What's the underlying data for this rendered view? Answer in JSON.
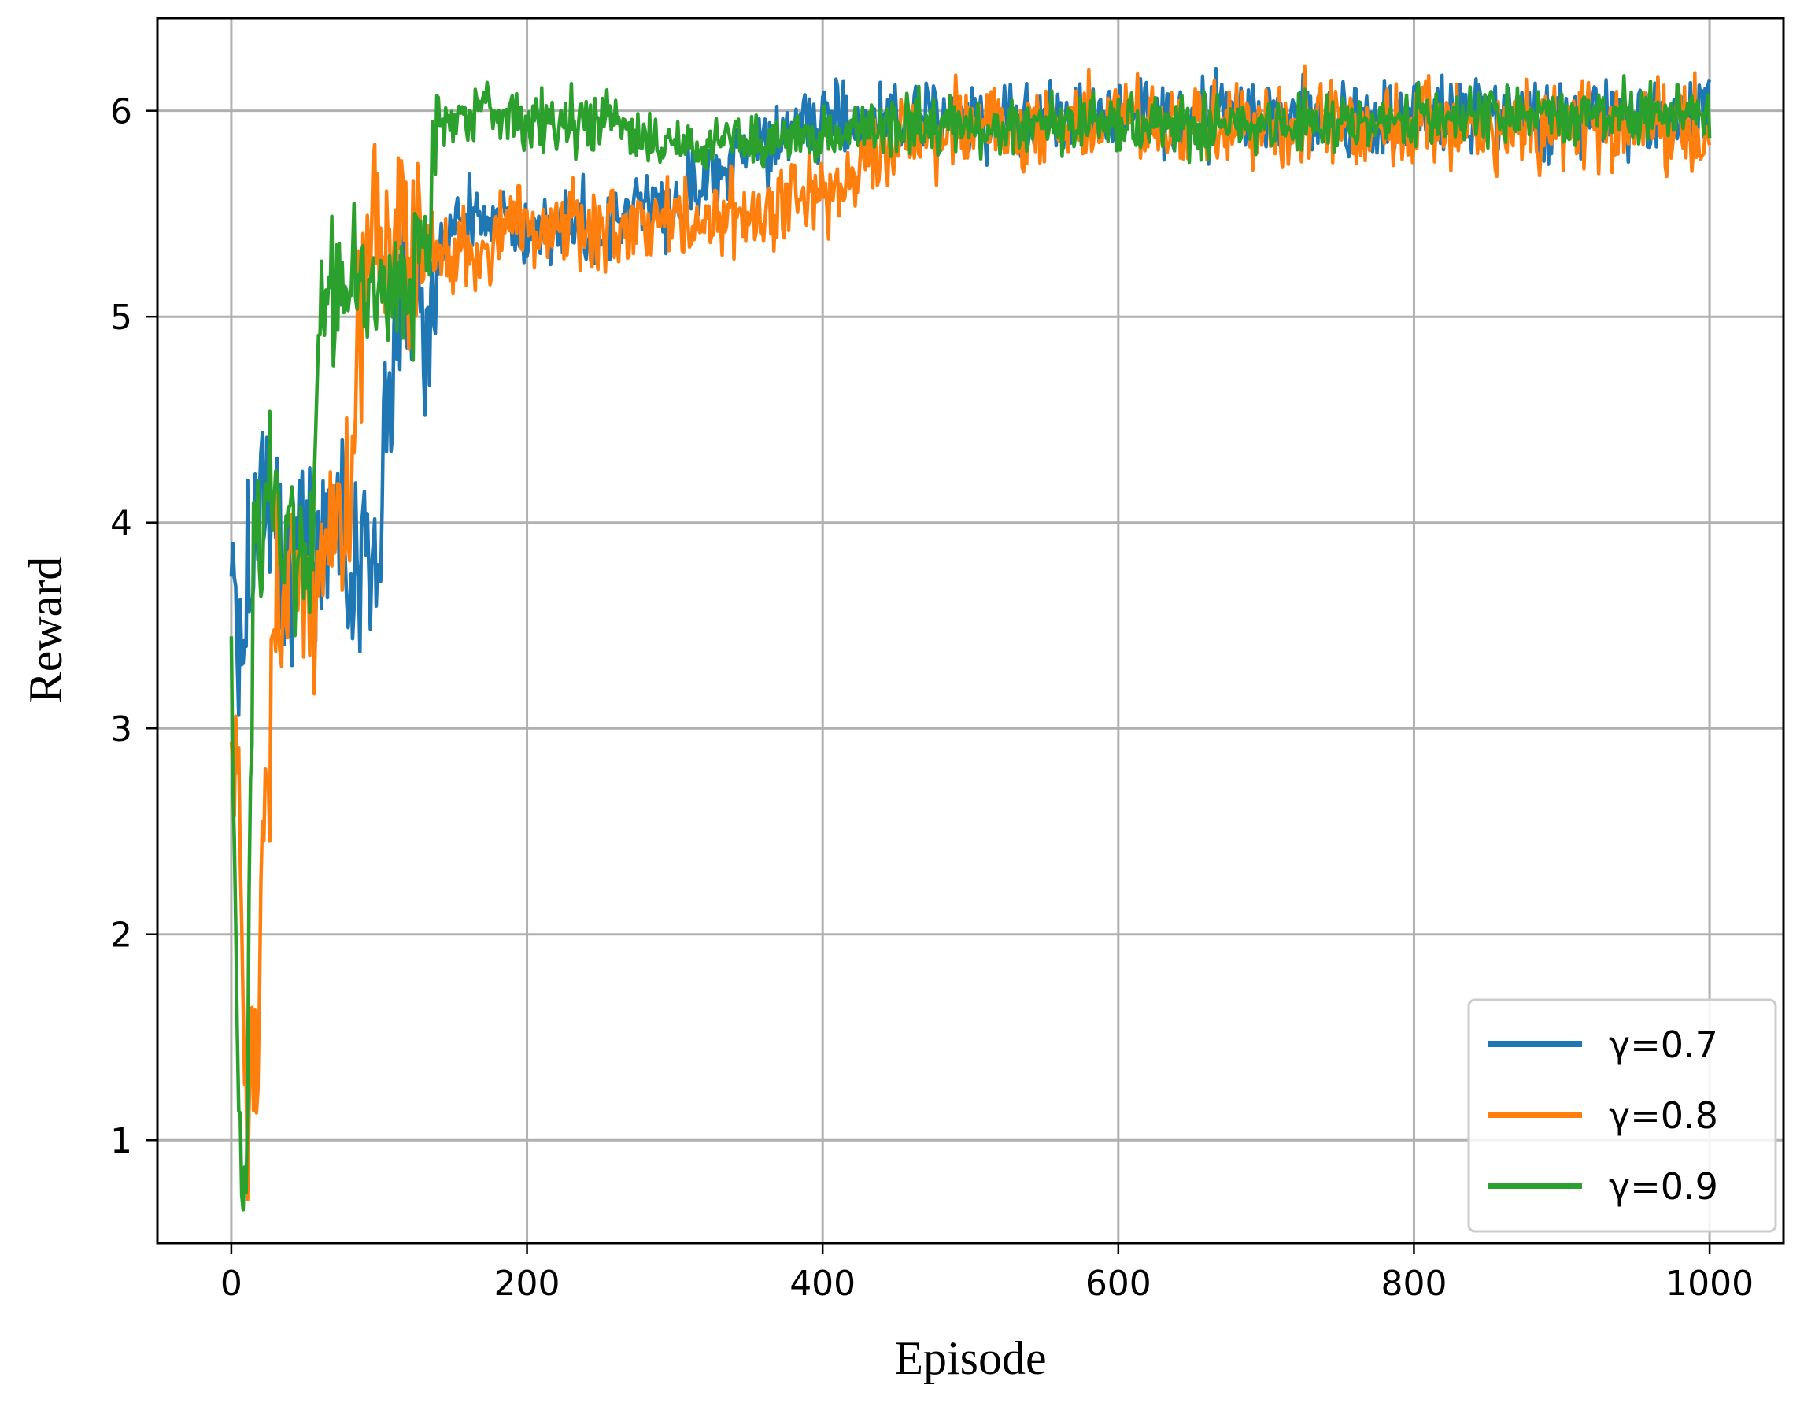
{
  "chart_data": {
    "type": "line",
    "xlabel": "Episode",
    "ylabel": "Reward",
    "xlim": [
      -50,
      1050
    ],
    "ylim": [
      0.5,
      6.45
    ],
    "xticks": [
      0,
      200,
      400,
      600,
      800,
      1000
    ],
    "yticks": [
      1,
      2,
      3,
      4,
      5,
      6
    ],
    "grid": true,
    "legend_position": "lower-right",
    "x": [
      0,
      5,
      10,
      15,
      20,
      25,
      30,
      35,
      40,
      45,
      50,
      55,
      60,
      65,
      70,
      75,
      80,
      85,
      90,
      95,
      100,
      110,
      120,
      130,
      140,
      150,
      175,
      200,
      250,
      300,
      350,
      400,
      450,
      500,
      600,
      700,
      800,
      900,
      1000
    ],
    "series": [
      {
        "name": "γ=0.7",
        "color": "#1f77b4",
        "noise": 0.14,
        "values": [
          3.6,
          3.5,
          3.7,
          3.9,
          4.3,
          4.2,
          3.9,
          3.8,
          3.8,
          3.9,
          4.0,
          3.8,
          3.9,
          4.0,
          3.9,
          3.9,
          3.8,
          3.8,
          3.9,
          3.8,
          4.0,
          5.0,
          5.1,
          5.05,
          5.3,
          5.45,
          5.5,
          5.4,
          5.45,
          5.55,
          5.8,
          5.95,
          5.95,
          5.97,
          5.97,
          5.97,
          5.98,
          5.98,
          5.98
        ]
      },
      {
        "name": "γ=0.8",
        "color": "#ff7f0e",
        "noise": 0.16,
        "values": [
          3.0,
          2.8,
          1.1,
          1.3,
          2.0,
          3.0,
          3.5,
          3.6,
          3.7,
          3.6,
          3.6,
          3.6,
          3.8,
          3.9,
          3.9,
          3.8,
          4.0,
          4.8,
          5.3,
          5.4,
          5.35,
          5.3,
          5.3,
          5.3,
          5.25,
          5.3,
          5.35,
          5.4,
          5.45,
          5.45,
          5.5,
          5.6,
          5.85,
          5.95,
          5.95,
          5.95,
          5.95,
          5.9,
          5.92
        ]
      },
      {
        "name": "γ=0.9",
        "color": "#2ca02c",
        "noise": 0.11,
        "values": [
          3.3,
          1.0,
          0.9,
          3.8,
          4.0,
          4.1,
          4.1,
          3.9,
          4.0,
          3.8,
          3.8,
          3.9,
          5.1,
          5.15,
          5.05,
          5.15,
          5.2,
          5.25,
          5.2,
          5.15,
          5.2,
          5.15,
          5.2,
          5.25,
          5.95,
          5.98,
          5.98,
          5.95,
          5.95,
          5.85,
          5.85,
          5.88,
          5.92,
          5.93,
          5.93,
          5.92,
          5.95,
          5.98,
          5.98
        ]
      }
    ]
  }
}
